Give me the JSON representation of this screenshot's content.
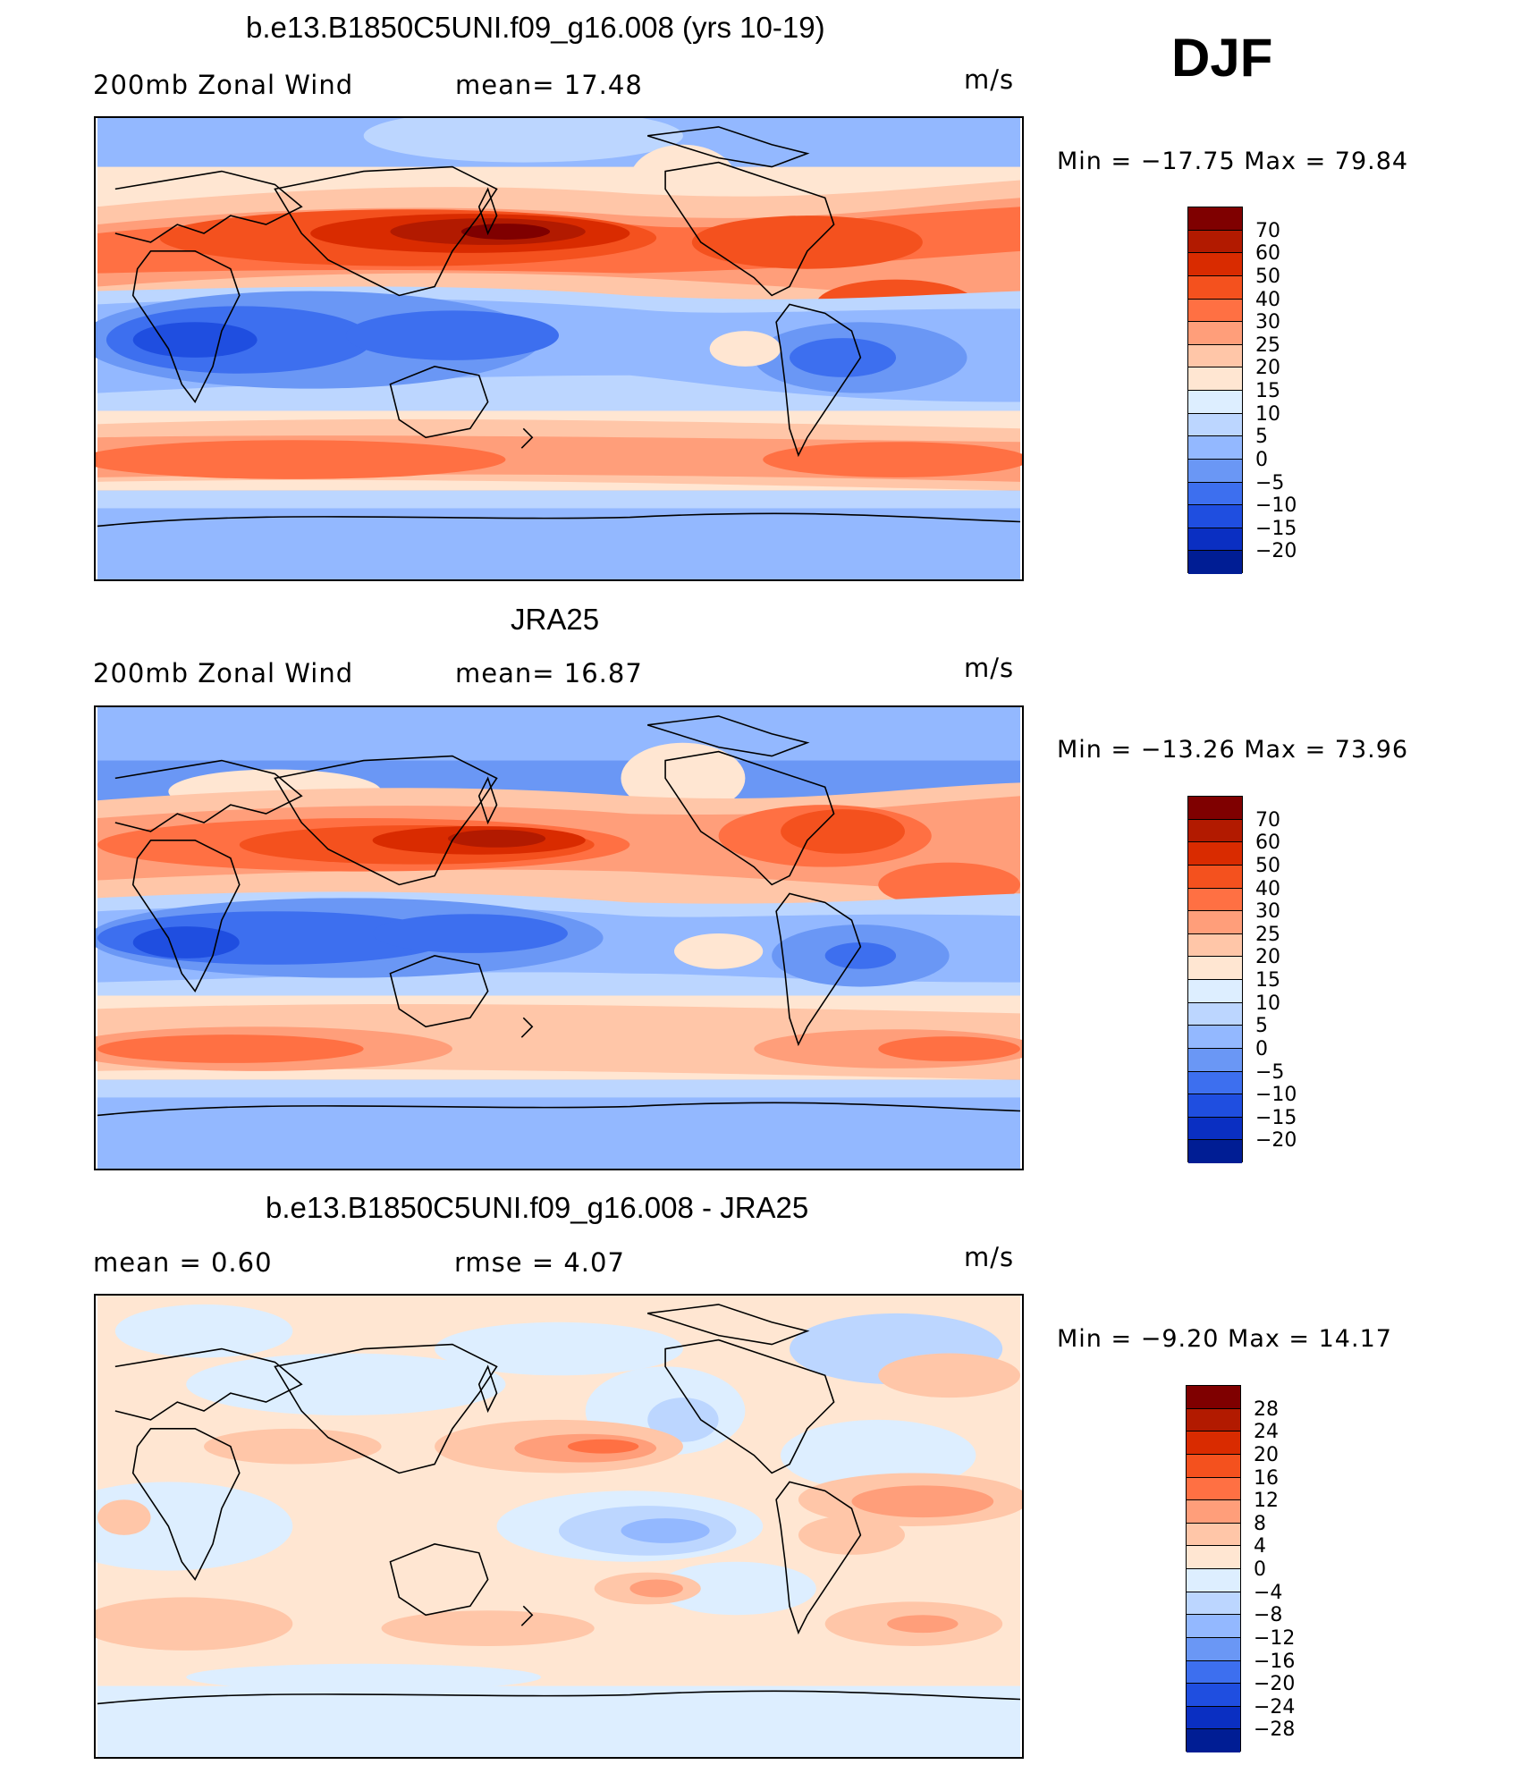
{
  "season": "DJF",
  "units": "m/s",
  "panels": [
    {
      "title": "b.e13.B1850C5UNI.f09_g16.008 (yrs 10-19)",
      "left_label": "200mb Zonal Wind",
      "mid_label": "mean=   17.48",
      "units": "m/s",
      "min_max": "Min  =  −17.75  Max  =    79.84",
      "kind": "field"
    },
    {
      "title": "JRA25",
      "left_label": "200mb Zonal Wind",
      "mid_label": "mean=   16.87",
      "units": "m/s",
      "min_max": "Min  =  −13.26  Max  =    73.96",
      "kind": "field"
    },
    {
      "title": "b.e13.B1850C5UNI.f09_g16.008 - JRA25",
      "left_label": "mean  =      0.60",
      "mid_label": "rmse  =      4.07",
      "units": "m/s",
      "min_max": "Min  =     −9.20  Max  =    14.17",
      "kind": "diff"
    }
  ],
  "colorbars": {
    "field": {
      "labels": [
        "70",
        "60",
        "50",
        "40",
        "30",
        "25",
        "20",
        "15",
        "10",
        "5",
        "0",
        "−5",
        "−10",
        "−15",
        "−20"
      ],
      "colors": [
        "#7f0000",
        "#b21a00",
        "#d92b00",
        "#f4511e",
        "#ff7043",
        "#ff9e7a",
        "#ffc6a8",
        "#ffe6d2",
        "#ddeeff",
        "#bcd6ff",
        "#93b8ff",
        "#6a97f5",
        "#3d6fef",
        "#1f4ee0",
        "#0a2fc2",
        "#001d94"
      ]
    },
    "diff": {
      "labels": [
        "28",
        "24",
        "20",
        "16",
        "12",
        "8",
        "4",
        "0",
        "−4",
        "−8",
        "−12",
        "−16",
        "−20",
        "−24",
        "−28"
      ],
      "colors": [
        "#7f0000",
        "#b21a00",
        "#d92b00",
        "#f4511e",
        "#ff7043",
        "#ff9e7a",
        "#ffc6a8",
        "#ffe6d2",
        "#ddeeff",
        "#bcd6ff",
        "#93b8ff",
        "#6a97f5",
        "#3d6fef",
        "#1f4ee0",
        "#0a2fc2",
        "#001d94"
      ]
    }
  }
}
